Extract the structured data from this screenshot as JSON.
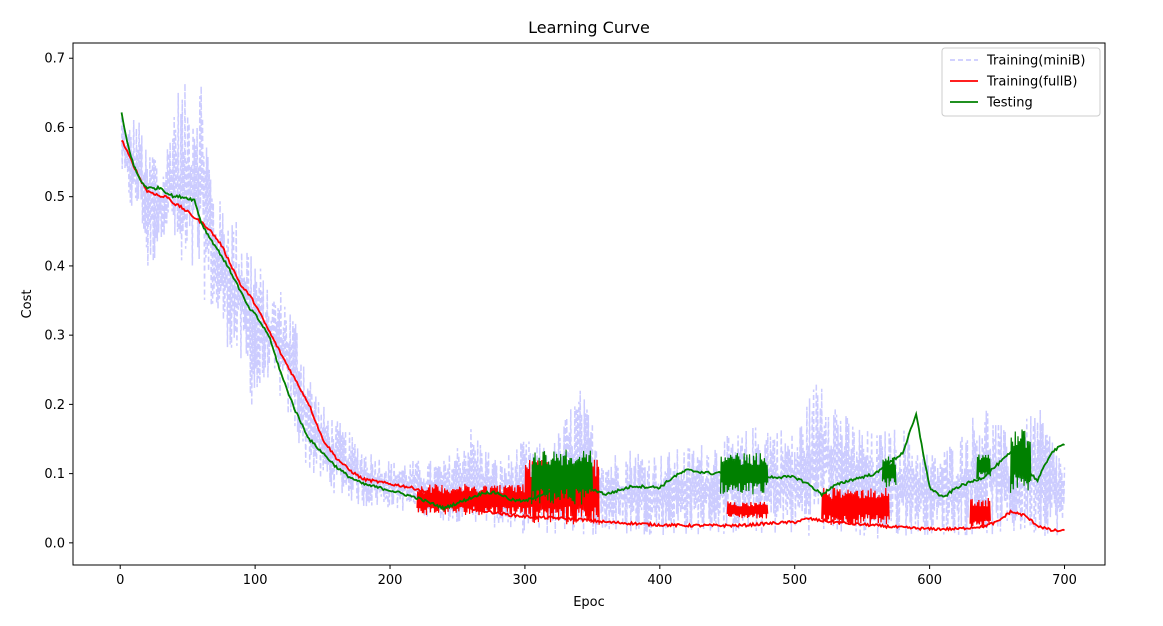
{
  "chart_data": {
    "type": "line",
    "title": "Learning Curve",
    "xlabel": "Epoc",
    "ylabel": "Cost",
    "xlim": [
      -35,
      730
    ],
    "ylim": [
      -0.032,
      0.722
    ],
    "xticks": [
      0,
      100,
      200,
      300,
      400,
      500,
      600,
      700
    ],
    "xtick_labels": [
      "0",
      "100",
      "200",
      "300",
      "400",
      "500",
      "600",
      "700"
    ],
    "yticks": [
      0.0,
      0.1,
      0.2,
      0.3,
      0.4,
      0.5,
      0.6,
      0.7
    ],
    "ytick_labels": [
      "0.0",
      "0.1",
      "0.2",
      "0.3",
      "0.4",
      "0.5",
      "0.6",
      "0.7"
    ],
    "grid": false,
    "legend_position": "top-right",
    "series": [
      {
        "name": "Training(miniB)",
        "color": "#ccccff",
        "style": "dashed",
        "x": [
          1,
          5,
          10,
          15,
          20,
          25,
          30,
          35,
          40,
          45,
          50,
          55,
          60,
          70,
          80,
          90,
          100,
          110,
          120,
          130,
          140,
          150,
          160,
          170,
          180,
          200,
          220,
          240,
          260,
          280,
          300,
          320,
          340,
          360,
          380,
          400,
          420,
          440,
          460,
          480,
          500,
          520,
          540,
          560,
          580,
          600,
          620,
          640,
          660,
          680,
          700
        ],
        "lo": [
          0.53,
          0.5,
          0.46,
          0.48,
          0.38,
          0.4,
          0.44,
          0.45,
          0.42,
          0.35,
          0.36,
          0.37,
          0.36,
          0.32,
          0.28,
          0.24,
          0.18,
          0.24,
          0.2,
          0.15,
          0.1,
          0.08,
          0.07,
          0.06,
          0.05,
          0.05,
          0.04,
          0.03,
          0.03,
          0.02,
          0.01,
          0.01,
          0.01,
          0.01,
          0.01,
          0.01,
          0.01,
          0.01,
          0.01,
          0.01,
          0.01,
          0.01,
          0.01,
          0.0,
          0.01,
          0.01,
          0.01,
          0.01,
          0.01,
          0.01,
          0.01
        ],
        "hi": [
          0.63,
          0.6,
          0.62,
          0.61,
          0.56,
          0.59,
          0.52,
          0.58,
          0.65,
          0.67,
          0.66,
          0.68,
          0.69,
          0.5,
          0.49,
          0.46,
          0.43,
          0.36,
          0.37,
          0.33,
          0.25,
          0.2,
          0.18,
          0.16,
          0.14,
          0.12,
          0.12,
          0.12,
          0.17,
          0.12,
          0.15,
          0.14,
          0.23,
          0.13,
          0.14,
          0.13,
          0.14,
          0.15,
          0.16,
          0.18,
          0.16,
          0.26,
          0.18,
          0.16,
          0.17,
          0.13,
          0.15,
          0.21,
          0.15,
          0.2,
          0.12
        ]
      },
      {
        "name": "Training(fullB)",
        "color": "#ff0000",
        "style": "solid",
        "x": [
          1,
          5,
          10,
          15,
          20,
          25,
          30,
          35,
          40,
          45,
          50,
          55,
          60,
          65,
          70,
          75,
          80,
          85,
          90,
          95,
          100,
          110,
          120,
          130,
          140,
          150,
          160,
          170,
          180,
          200,
          210,
          220,
          230,
          240,
          250,
          260,
          270,
          280,
          290,
          300,
          320,
          340,
          360,
          380,
          400,
          420,
          440,
          460,
          480,
          500,
          510,
          520,
          540,
          560,
          580,
          600,
          620,
          640,
          650,
          660,
          670,
          680,
          690,
          700
        ],
        "y": [
          0.583,
          0.565,
          0.545,
          0.525,
          0.508,
          0.505,
          0.5,
          0.5,
          0.49,
          0.485,
          0.478,
          0.47,
          0.463,
          0.455,
          0.443,
          0.43,
          0.41,
          0.39,
          0.37,
          0.36,
          0.345,
          0.307,
          0.27,
          0.235,
          0.2,
          0.15,
          0.123,
          0.105,
          0.092,
          0.085,
          0.082,
          0.078,
          0.07,
          0.062,
          0.055,
          0.05,
          0.046,
          0.043,
          0.04,
          0.038,
          0.036,
          0.034,
          0.03,
          0.028,
          0.026,
          0.025,
          0.025,
          0.025,
          0.028,
          0.03,
          0.035,
          0.032,
          0.028,
          0.025,
          0.022,
          0.02,
          0.02,
          0.024,
          0.03,
          0.045,
          0.04,
          0.025,
          0.018,
          0.017
        ]
      },
      {
        "name": "Testing",
        "color": "#008000",
        "style": "solid",
        "x": [
          1,
          5,
          10,
          15,
          20,
          25,
          30,
          35,
          40,
          45,
          50,
          55,
          60,
          65,
          70,
          75,
          80,
          85,
          90,
          95,
          100,
          110,
          120,
          130,
          140,
          150,
          160,
          170,
          180,
          200,
          220,
          240,
          260,
          270,
          280,
          290,
          300,
          310,
          320,
          340,
          360,
          380,
          400,
          410,
          420,
          440,
          460,
          480,
          500,
          510,
          520,
          530,
          540,
          560,
          570,
          580,
          590,
          600,
          610,
          620,
          640,
          660,
          670,
          680,
          690,
          700
        ],
        "y": [
          0.62,
          0.58,
          0.545,
          0.523,
          0.513,
          0.512,
          0.513,
          0.505,
          0.5,
          0.5,
          0.498,
          0.495,
          0.463,
          0.445,
          0.43,
          0.415,
          0.398,
          0.38,
          0.36,
          0.34,
          0.33,
          0.3,
          0.24,
          0.19,
          0.15,
          0.13,
          0.11,
          0.095,
          0.085,
          0.076,
          0.065,
          0.05,
          0.065,
          0.073,
          0.072,
          0.062,
          0.06,
          0.068,
          0.075,
          0.085,
          0.07,
          0.082,
          0.08,
          0.095,
          0.105,
          0.1,
          0.11,
          0.095,
          0.095,
          0.085,
          0.07,
          0.083,
          0.09,
          0.1,
          0.115,
          0.13,
          0.185,
          0.08,
          0.065,
          0.08,
          0.095,
          0.13,
          0.11,
          0.09,
          0.13,
          0.143
        ]
      }
    ],
    "oscillation_bands": [
      {
        "series": "Training(fullB)",
        "x": [
          220,
          300
        ],
        "lo": 0.04,
        "hi": 0.085
      },
      {
        "series": "Training(fullB)",
        "x": [
          300,
          355
        ],
        "lo": 0.025,
        "hi": 0.12
      },
      {
        "series": "Training(fullB)",
        "x": [
          450,
          480
        ],
        "lo": 0.035,
        "hi": 0.06
      },
      {
        "series": "Training(fullB)",
        "x": [
          520,
          570
        ],
        "lo": 0.025,
        "hi": 0.08
      },
      {
        "series": "Training(fullB)",
        "x": [
          630,
          645
        ],
        "lo": 0.02,
        "hi": 0.065
      },
      {
        "series": "Testing",
        "x": [
          305,
          350
        ],
        "lo": 0.055,
        "hi": 0.135
      },
      {
        "series": "Testing",
        "x": [
          445,
          480
        ],
        "lo": 0.07,
        "hi": 0.13
      },
      {
        "series": "Testing",
        "x": [
          565,
          575
        ],
        "lo": 0.08,
        "hi": 0.125
      },
      {
        "series": "Testing",
        "x": [
          635,
          645
        ],
        "lo": 0.09,
        "hi": 0.13
      },
      {
        "series": "Testing",
        "x": [
          660,
          675
        ],
        "lo": 0.07,
        "hi": 0.165
      }
    ]
  }
}
